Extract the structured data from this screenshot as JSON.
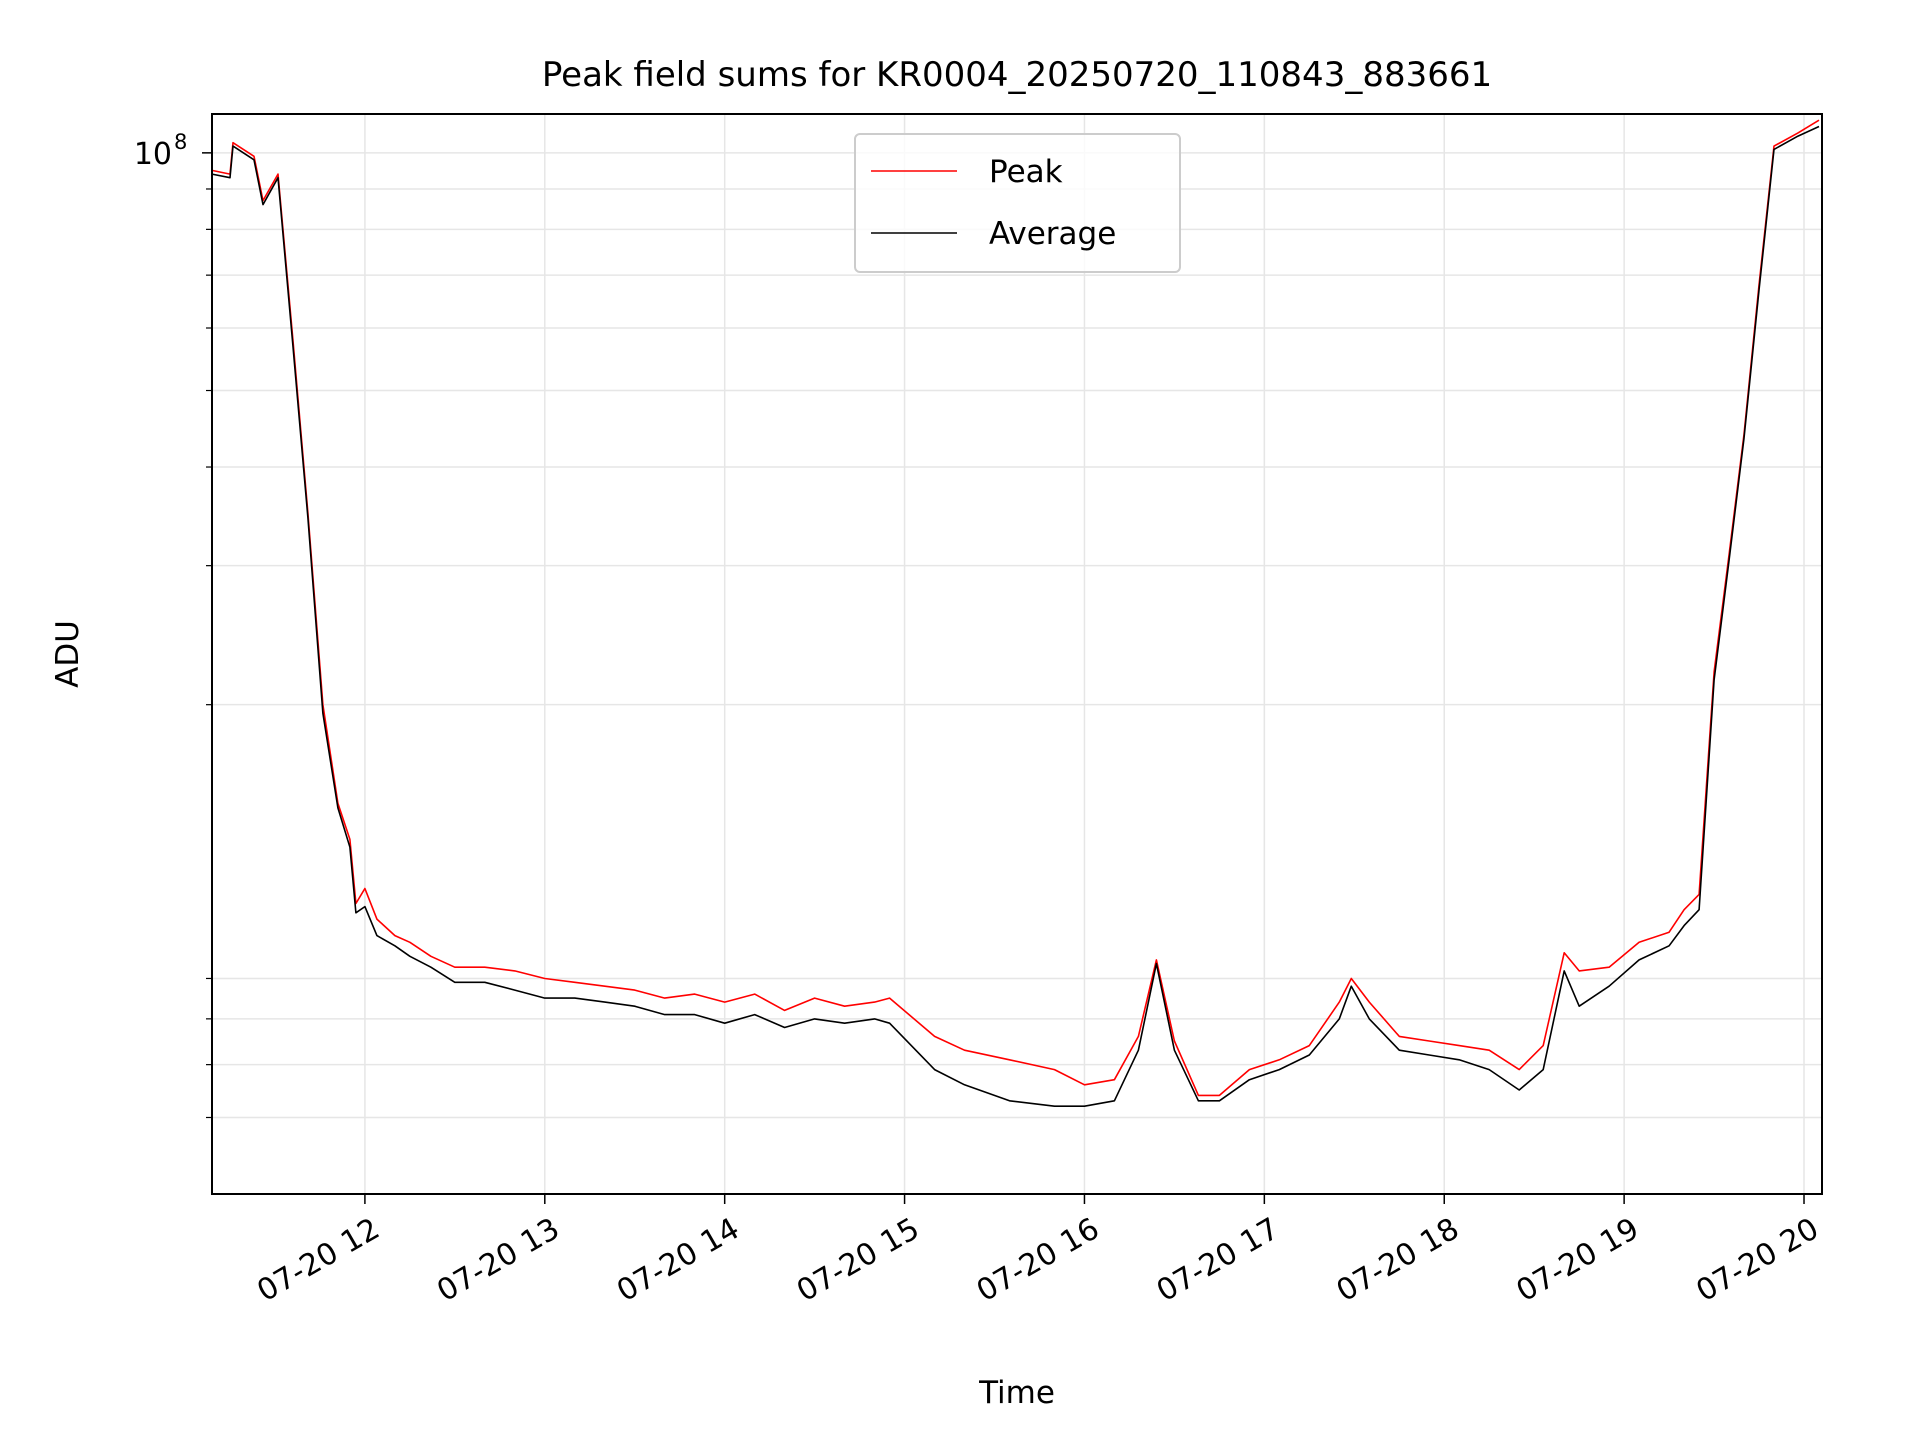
{
  "chart_data": {
    "type": "line",
    "title": "Peak field sums for KR0004_20250720_110843_883661",
    "xlabel": "Time",
    "ylabel": "ADU",
    "y_scale": "log",
    "grid": true,
    "legend_position": "top-center",
    "xlim": [
      "2025-07-20 11:09",
      "2025-07-20 20:06"
    ],
    "ylim": [
      4800000,
      112000000
    ],
    "x_ticks": [
      "07-20 12",
      "07-20 13",
      "07-20 14",
      "07-20 15",
      "07-20 16",
      "07-20 17",
      "07-20 18",
      "07-20 19",
      "07-20 20"
    ],
    "x_tick_values": [
      "2025-07-20 12:00",
      "2025-07-20 13:00",
      "2025-07-20 14:00",
      "2025-07-20 15:00",
      "2025-07-20 16:00",
      "2025-07-20 17:00",
      "2025-07-20 18:00",
      "2025-07-20 19:00",
      "2025-07-20 20:00"
    ],
    "y_major_ticks": [
      {
        "value": 100000000,
        "base": "10",
        "exponent": "8"
      }
    ],
    "y_minor_ticks": [
      6000000,
      7000000,
      8000000,
      9000000,
      20000000,
      30000000,
      40000000,
      50000000,
      60000000,
      70000000,
      80000000,
      90000000
    ],
    "series": [
      {
        "name": "Peak",
        "color": "#ff0000",
        "x": [
          "2025-07-20 11:09",
          "2025-07-20 11:15",
          "2025-07-20 11:16",
          "2025-07-20 11:23",
          "2025-07-20 11:26",
          "2025-07-20 11:31",
          "2025-07-20 11:36",
          "2025-07-20 11:41",
          "2025-07-20 11:46",
          "2025-07-20 11:51",
          "2025-07-20 11:55",
          "2025-07-20 11:57",
          "2025-07-20 12:00",
          "2025-07-20 12:04",
          "2025-07-20 12:10",
          "2025-07-20 12:15",
          "2025-07-20 12:22",
          "2025-07-20 12:30",
          "2025-07-20 12:40",
          "2025-07-20 12:50",
          "2025-07-20 13:00",
          "2025-07-20 13:10",
          "2025-07-20 13:20",
          "2025-07-20 13:30",
          "2025-07-20 13:40",
          "2025-07-20 13:50",
          "2025-07-20 14:00",
          "2025-07-20 14:10",
          "2025-07-20 14:20",
          "2025-07-20 14:30",
          "2025-07-20 14:40",
          "2025-07-20 14:50",
          "2025-07-20 14:55",
          "2025-07-20 15:10",
          "2025-07-20 15:20",
          "2025-07-20 15:35",
          "2025-07-20 15:50",
          "2025-07-20 16:00",
          "2025-07-20 16:10",
          "2025-07-20 16:18",
          "2025-07-20 16:24",
          "2025-07-20 16:30",
          "2025-07-20 16:38",
          "2025-07-20 16:45",
          "2025-07-20 16:55",
          "2025-07-20 17:05",
          "2025-07-20 17:15",
          "2025-07-20 17:25",
          "2025-07-20 17:29",
          "2025-07-20 17:35",
          "2025-07-20 17:45",
          "2025-07-20 17:55",
          "2025-07-20 18:05",
          "2025-07-20 18:15",
          "2025-07-20 18:25",
          "2025-07-20 18:33",
          "2025-07-20 18:40",
          "2025-07-20 18:45",
          "2025-07-20 18:55",
          "2025-07-20 19:05",
          "2025-07-20 19:15",
          "2025-07-20 19:20",
          "2025-07-20 19:25",
          "2025-07-20 19:30",
          "2025-07-20 19:35",
          "2025-07-20 19:40",
          "2025-07-20 19:45",
          "2025-07-20 19:50",
          "2025-07-20 19:58",
          "2025-07-20 20:05"
        ],
        "y": [
          95000000,
          94000000,
          103000000,
          99000000,
          87000000,
          94000000,
          58000000,
          35000000,
          20000000,
          15000000,
          13500000,
          11200000,
          11700000,
          10700000,
          10200000,
          10000000,
          9600000,
          9300000,
          9300000,
          9200000,
          9000000,
          8900000,
          8800000,
          8700000,
          8500000,
          8600000,
          8400000,
          8600000,
          8200000,
          8500000,
          8300000,
          8400000,
          8500000,
          7600000,
          7300000,
          7100000,
          6900000,
          6600000,
          6700000,
          7600000,
          9500000,
          7500000,
          6400000,
          6400000,
          6900000,
          7100000,
          7400000,
          8400000,
          9000000,
          8400000,
          7600000,
          7500000,
          7400000,
          7300000,
          6900000,
          7400000,
          9700000,
          9200000,
          9300000,
          10000000,
          10300000,
          11000000,
          11500000,
          22000000,
          31000000,
          44000000,
          68000000,
          102000000,
          106000000,
          110000000
        ]
      },
      {
        "name": "Average",
        "color": "#000000",
        "x": [
          "2025-07-20 11:09",
          "2025-07-20 11:15",
          "2025-07-20 11:16",
          "2025-07-20 11:23",
          "2025-07-20 11:26",
          "2025-07-20 11:31",
          "2025-07-20 11:36",
          "2025-07-20 11:41",
          "2025-07-20 11:46",
          "2025-07-20 11:51",
          "2025-07-20 11:55",
          "2025-07-20 11:57",
          "2025-07-20 12:00",
          "2025-07-20 12:04",
          "2025-07-20 12:10",
          "2025-07-20 12:15",
          "2025-07-20 12:22",
          "2025-07-20 12:30",
          "2025-07-20 12:40",
          "2025-07-20 12:50",
          "2025-07-20 13:00",
          "2025-07-20 13:10",
          "2025-07-20 13:20",
          "2025-07-20 13:30",
          "2025-07-20 13:40",
          "2025-07-20 13:50",
          "2025-07-20 14:00",
          "2025-07-20 14:10",
          "2025-07-20 14:20",
          "2025-07-20 14:30",
          "2025-07-20 14:40",
          "2025-07-20 14:50",
          "2025-07-20 14:55",
          "2025-07-20 15:10",
          "2025-07-20 15:20",
          "2025-07-20 15:35",
          "2025-07-20 15:50",
          "2025-07-20 16:00",
          "2025-07-20 16:10",
          "2025-07-20 16:18",
          "2025-07-20 16:24",
          "2025-07-20 16:30",
          "2025-07-20 16:38",
          "2025-07-20 16:45",
          "2025-07-20 16:55",
          "2025-07-20 17:05",
          "2025-07-20 17:15",
          "2025-07-20 17:25",
          "2025-07-20 17:29",
          "2025-07-20 17:35",
          "2025-07-20 17:45",
          "2025-07-20 17:55",
          "2025-07-20 18:05",
          "2025-07-20 18:15",
          "2025-07-20 18:25",
          "2025-07-20 18:33",
          "2025-07-20 18:40",
          "2025-07-20 18:45",
          "2025-07-20 18:55",
          "2025-07-20 19:05",
          "2025-07-20 19:15",
          "2025-07-20 19:20",
          "2025-07-20 19:25",
          "2025-07-20 19:30",
          "2025-07-20 19:35",
          "2025-07-20 19:40",
          "2025-07-20 19:45",
          "2025-07-20 19:50",
          "2025-07-20 19:58",
          "2025-07-20 20:05"
        ],
        "y": [
          94000000,
          93000000,
          102000000,
          98000000,
          86000000,
          93000000,
          57000000,
          34500000,
          19500000,
          14800000,
          13200000,
          10900000,
          11100000,
          10200000,
          9900000,
          9600000,
          9300000,
          8900000,
          8900000,
          8700000,
          8500000,
          8500000,
          8400000,
          8300000,
          8100000,
          8100000,
          7900000,
          8100000,
          7800000,
          8000000,
          7900000,
          8000000,
          7900000,
          6900000,
          6600000,
          6300000,
          6200000,
          6200000,
          6300000,
          7300000,
          9400000,
          7300000,
          6300000,
          6300000,
          6700000,
          6900000,
          7200000,
          8000000,
          8800000,
          8000000,
          7300000,
          7200000,
          7100000,
          6900000,
          6500000,
          6900000,
          9200000,
          8300000,
          8800000,
          9500000,
          9900000,
          10500000,
          11000000,
          21500000,
          30500000,
          43500000,
          67000000,
          101000000,
          105000000,
          108000000
        ]
      }
    ]
  }
}
